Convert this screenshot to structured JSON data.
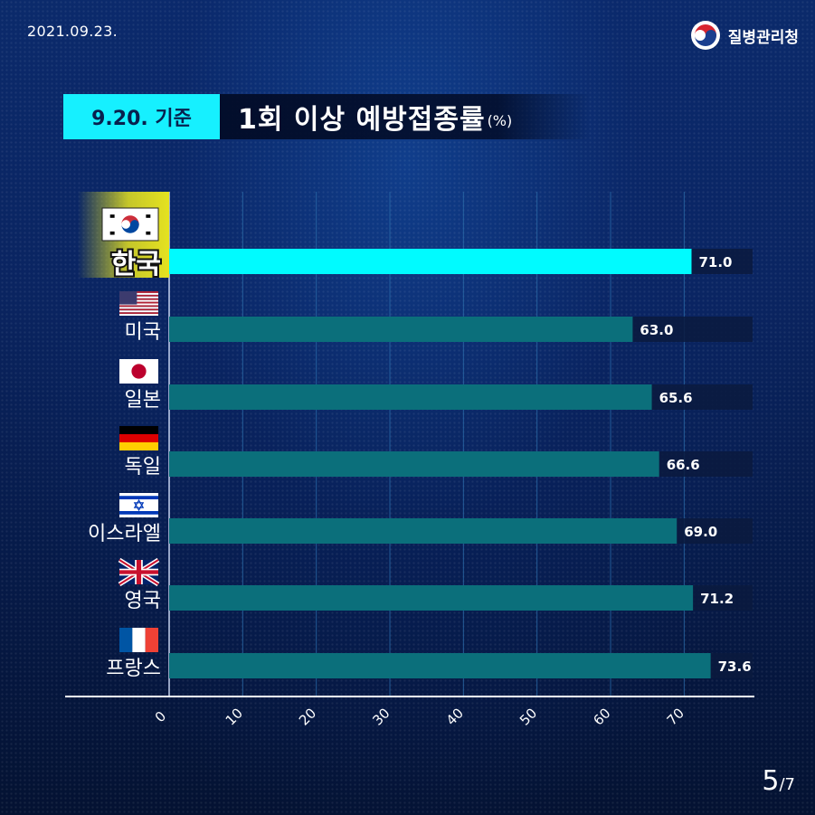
{
  "header": {
    "date": "2021.09.23.",
    "agency": "질병관리청",
    "tag": "9.20. 기준",
    "title": "1회 이상 예방접종률",
    "unit": "(%)"
  },
  "footer": {
    "current": "5",
    "separator": "/",
    "total": "7"
  },
  "colors": {
    "highlight_bar": "#00fbff",
    "bar": "#0b6f7b",
    "track": "#0a1a3e",
    "tag_bg": "#16f0ff",
    "highlight_label_bg": "#e5e220"
  },
  "chart_data": {
    "type": "bar",
    "orientation": "horizontal",
    "categories": [
      "한국",
      "미국",
      "일본",
      "독일",
      "이스라엘",
      "영국",
      "프랑스"
    ],
    "values": [
      71.0,
      63.0,
      65.6,
      66.6,
      69.0,
      71.2,
      73.6
    ],
    "value_labels": [
      "71.0",
      "63.0",
      "65.6",
      "66.6",
      "69.0",
      "71.2",
      "73.6"
    ],
    "flags": [
      "flag-korea-icon",
      "flag-usa-icon",
      "flag-japan-icon",
      "flag-germany-icon",
      "flag-israel-icon",
      "flag-uk-icon",
      "flag-france-icon"
    ],
    "highlight": "한국",
    "xticks": [
      "0",
      "10",
      "20",
      "30",
      "40",
      "50",
      "60",
      "70"
    ],
    "xlim": [
      0,
      79.3
    ],
    "grid": true,
    "title": "1회 이상 예방접종률",
    "unit": "(%)"
  }
}
